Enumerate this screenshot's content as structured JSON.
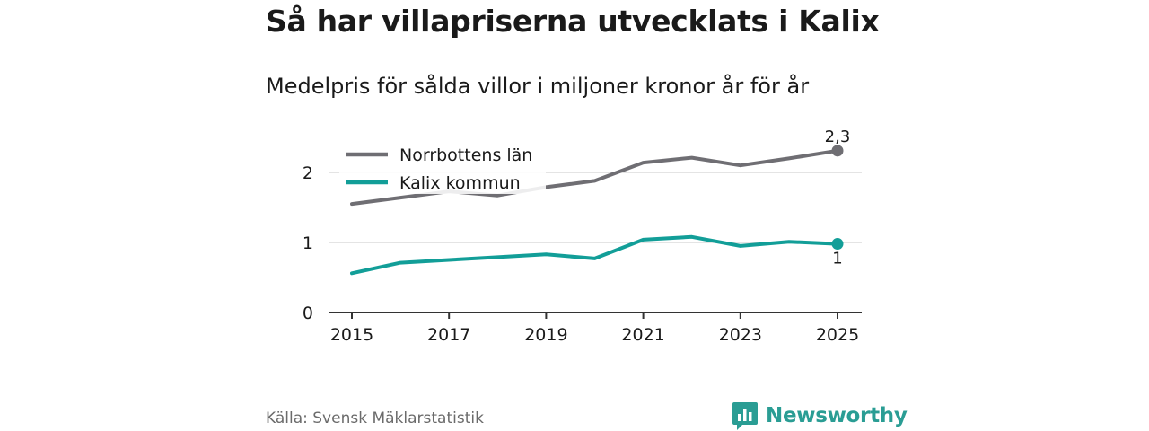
{
  "title": "Så har villapriserna utvecklats i Kalix",
  "subtitle": "Medelpris för sålda villor i miljoner kronor år för år",
  "source": "Källa: Svensk Mäklarstatistik",
  "brand": "Newsworthy",
  "colors": {
    "norrbotten": "#6f6e73",
    "kalix": "#129e98",
    "grid": "#d4d4d4",
    "axis": "#333333",
    "brand": "#2a9d94"
  },
  "chart_data": {
    "type": "line",
    "title": "Så har villapriserna utvecklats i Kalix",
    "subtitle": "Medelpris för sålda villor i miljoner kronor år för år",
    "xlabel": "",
    "ylabel": "",
    "x": [
      2015,
      2016,
      2017,
      2018,
      2019,
      2020,
      2021,
      2022,
      2023,
      2024,
      2025
    ],
    "xticks": [
      "2015",
      "2017",
      "2019",
      "2021",
      "2023",
      "2025"
    ],
    "yticks": [
      "0",
      "1",
      "2"
    ],
    "ylim": [
      0,
      2.6
    ],
    "grid": true,
    "legend_position": "top-left",
    "series": [
      {
        "name": "Norrbottens län",
        "color": "#6f6e73",
        "values": [
          1.55,
          1.64,
          1.73,
          1.67,
          1.79,
          1.88,
          2.14,
          2.21,
          2.1,
          2.2,
          2.31
        ],
        "end_label": "2,3"
      },
      {
        "name": "Kalix kommun",
        "color": "#129e98",
        "values": [
          0.56,
          0.71,
          0.75,
          0.79,
          0.83,
          0.77,
          1.04,
          1.08,
          0.95,
          1.01,
          0.98
        ],
        "end_label": "1"
      }
    ]
  }
}
